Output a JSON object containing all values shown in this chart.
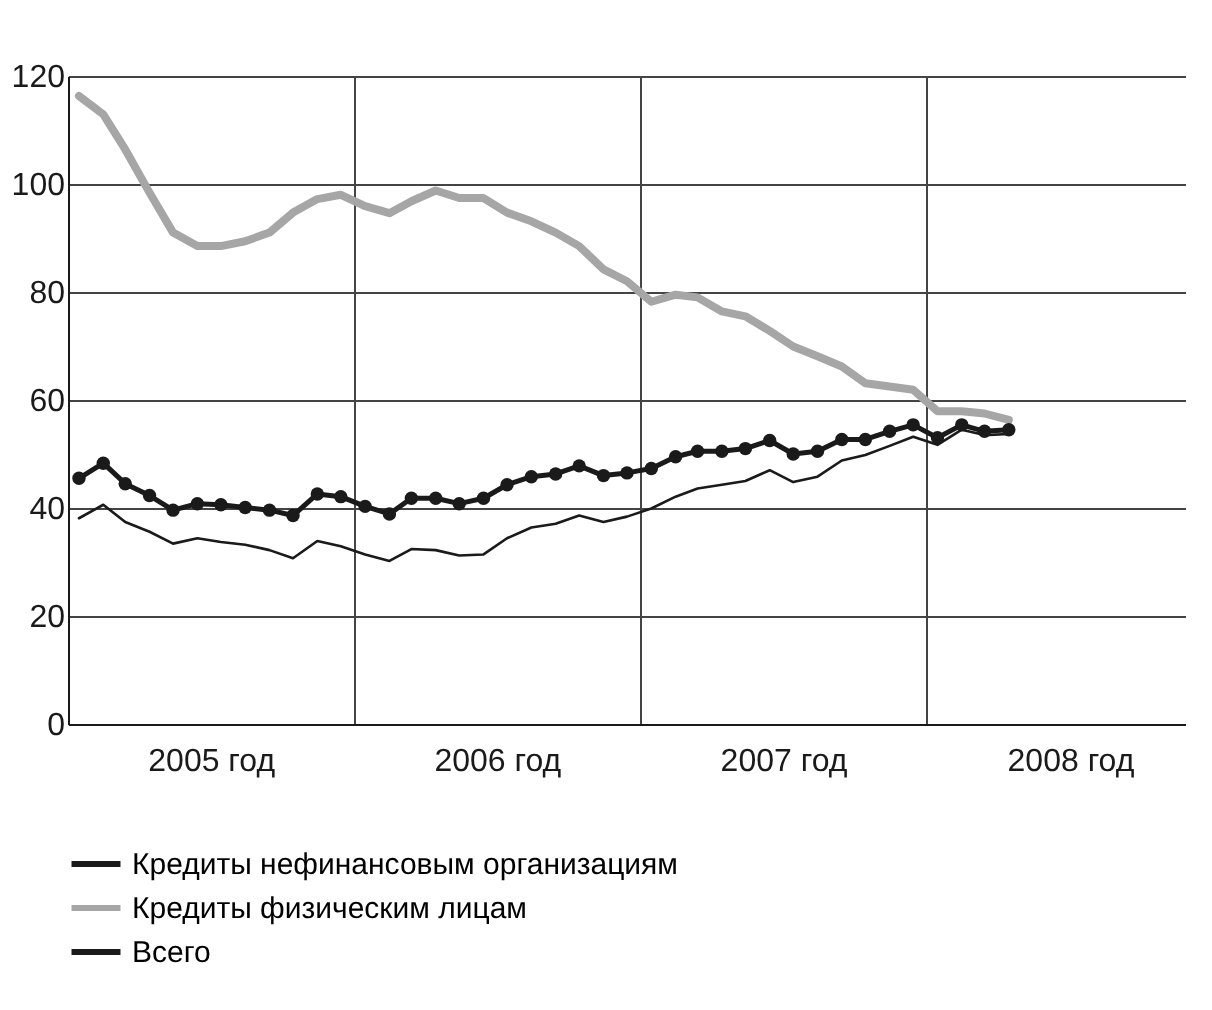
{
  "chart_data": {
    "type": "line",
    "x": [
      "2005-01-15",
      "2005-02-15",
      "2005-03-15",
      "2005-04-15",
      "2005-05-15",
      "2005-06-15",
      "2005-07-15",
      "2005-08-15",
      "2005-09-15",
      "2005-10-15",
      "2005-11-15",
      "2005-12-15",
      "2006-01-15",
      "2006-02-15",
      "2006-03-15",
      "2006-04-15",
      "2006-05-15",
      "2006-06-15",
      "2006-07-15",
      "2006-08-15",
      "2006-09-15",
      "2006-10-15",
      "2006-11-15",
      "2006-12-15",
      "2007-01-15",
      "2007-02-15",
      "2007-03-15",
      "2007-04-15",
      "2007-05-15",
      "2007-06-15",
      "2007-07-15",
      "2007-08-15",
      "2007-09-15",
      "2007-10-15",
      "2007-11-15",
      "2007-12-15",
      "2008-01-15",
      "2008-02-15",
      "2008-03-15",
      "2008-04-15"
    ],
    "series": [
      {
        "name": "Кредиты нефинансовым организациям",
        "color": "#1a1a1a",
        "marker": "none",
        "values": [
          38.1,
          40.6,
          37.4,
          35.6,
          33.4,
          34.4,
          33.7,
          33.2,
          32.2,
          30.7,
          33.9,
          32.9,
          31.4,
          30.2,
          32.4,
          32.2,
          31.2,
          31.4,
          34.4,
          36.4,
          37.1,
          38.6,
          37.4,
          38.4,
          39.9,
          42.1,
          43.6,
          44.3,
          45.0,
          47.0,
          44.8,
          45.8,
          48.8,
          49.8,
          51.5,
          53.2,
          51.7,
          54.5,
          53.5,
          53.7
        ]
      },
      {
        "name": "Кредиты физическим лицам",
        "color": "#a6a6a6",
        "marker": "none",
        "values": [
          116.3,
          112.9,
          106.4,
          98.4,
          91.0,
          88.5,
          88.5,
          89.4,
          91.0,
          94.7,
          97.2,
          98.0,
          95.9,
          94.6,
          96.8,
          98.8,
          97.4,
          97.4,
          94.7,
          93.1,
          91.0,
          88.5,
          84.2,
          82.0,
          78.2,
          79.5,
          79.0,
          76.4,
          75.5,
          72.8,
          69.9,
          68.1,
          66.2,
          63.1,
          62.5,
          61.9,
          57.9,
          57.9,
          57.5,
          56.3
        ]
      },
      {
        "name": "Всего",
        "color": "#1a1a1a",
        "marker": "circle",
        "values": [
          45.5,
          48.3,
          44.5,
          42.3,
          39.6,
          40.8,
          40.6,
          40.1,
          39.6,
          38.6,
          42.6,
          42.1,
          40.3,
          38.9,
          41.8,
          41.8,
          40.8,
          41.8,
          44.3,
          45.8,
          46.3,
          47.8,
          46.0,
          46.5,
          47.3,
          49.5,
          50.5,
          50.5,
          51.0,
          52.5,
          50.0,
          50.5,
          52.7,
          52.7,
          54.2,
          55.4,
          53.0,
          55.4,
          54.2,
          54.5
        ]
      }
    ],
    "xlim": [
      "2005-01-01",
      "2008-11-27"
    ],
    "xticks": [
      {
        "value": "2005-07-02",
        "label": "2005 год"
      },
      {
        "value": "2006-01-01",
        "label": null
      },
      {
        "value": "2006-07-02",
        "label": "2006 год"
      },
      {
        "value": "2007-01-01",
        "label": null
      },
      {
        "value": "2007-07-02",
        "label": "2007 год"
      },
      {
        "value": "2008-01-01",
        "label": null
      },
      {
        "value": "2008-07-02",
        "label": "2008 год"
      }
    ],
    "ylim": [
      0,
      120
    ],
    "yticks": [
      0,
      20,
      40,
      60,
      80,
      100,
      120
    ],
    "grid": true,
    "legend": "bottom"
  }
}
